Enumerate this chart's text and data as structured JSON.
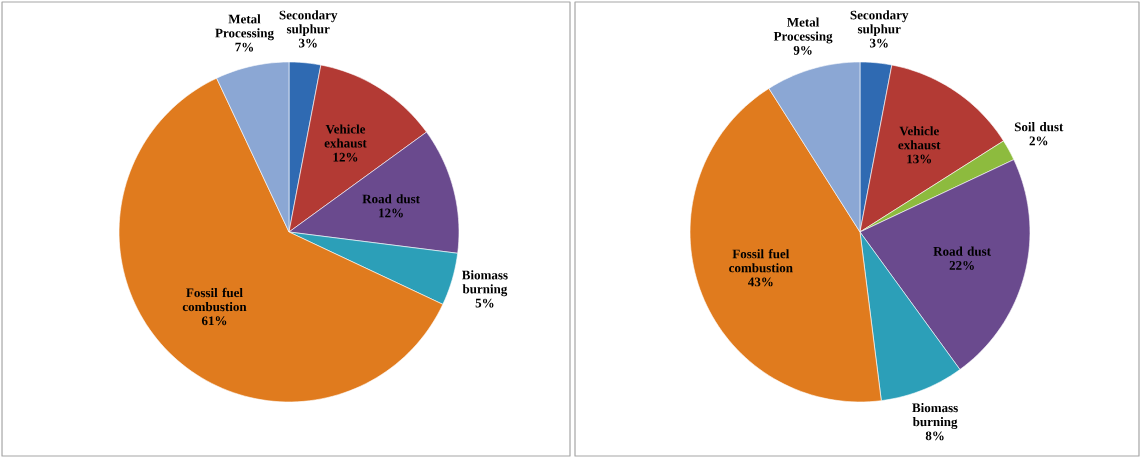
{
  "chart_data": [
    {
      "type": "pie",
      "categories": [
        "Secondary sulphur",
        "Vehicle exhaust",
        "Road dust",
        "Biomass burning",
        "Fossil fuel combustion",
        "Metal Processing"
      ],
      "values": [
        3,
        12,
        12,
        5,
        61,
        7
      ],
      "value_labels": [
        "3%",
        "12%",
        "12%",
        "5%",
        "61%",
        "7%"
      ],
      "colors": [
        "#2f6ab2",
        "#b33a34",
        "#6a4a8e",
        "#2c9fb8",
        "#e07b1e",
        "#8ba7d4"
      ]
    },
    {
      "type": "pie",
      "categories": [
        "Secondary sulphur",
        "Vehicle exhaust",
        "Soil dust",
        "Road dust",
        "Biomass burning",
        "Fossil fuel combustion",
        "Metal Processing"
      ],
      "values": [
        3,
        13,
        2,
        22,
        8,
        43,
        9
      ],
      "value_labels": [
        "3%",
        "13%",
        "2%",
        "22%",
        "8%",
        "43%",
        "9%"
      ],
      "colors": [
        "#2f6ab2",
        "#b33a34",
        "#8dbb3e",
        "#6a4a8e",
        "#2c9fb8",
        "#e07b1e",
        "#8ba7d4"
      ]
    }
  ]
}
